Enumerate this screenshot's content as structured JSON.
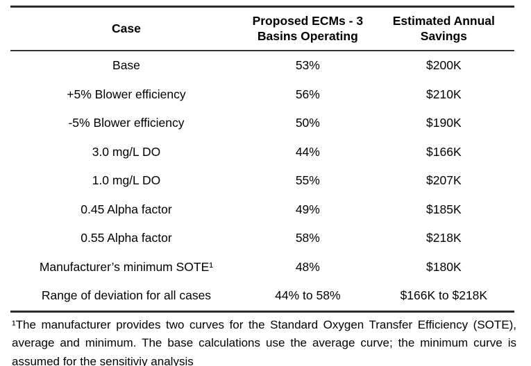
{
  "table": {
    "header": {
      "case": "Case",
      "ecm": "Proposed ECMs - 3\nBasins Operating",
      "savings": "Estimated Annual\nSavings"
    },
    "rows": [
      {
        "case": "Base",
        "ecm": "53%",
        "savings": "$200K"
      },
      {
        "case": "+5% Blower efficiency",
        "ecm": "56%",
        "savings": "$210K"
      },
      {
        "case": "-5% Blower efficiency",
        "ecm": "50%",
        "savings": "$190K"
      },
      {
        "case": "3.0 mg/L DO",
        "ecm": "44%",
        "savings": "$166K"
      },
      {
        "case": "1.0 mg/L DO",
        "ecm": "55%",
        "savings": "$207K"
      },
      {
        "case": "0.45 Alpha factor",
        "ecm": "49%",
        "savings": "$185K"
      },
      {
        "case": "0.55 Alpha factor",
        "ecm": "58%",
        "savings": "$218K"
      },
      {
        "case": "Manufacturer’s minimum SOTE¹",
        "ecm": "48%",
        "savings": "$180K"
      },
      {
        "case": "Range of deviation for all cases",
        "ecm": "44% to 58%",
        "savings": "$166K to $218K"
      }
    ],
    "footnote": "¹The manufacturer provides two curves for the Standard Oxygen Transfer Efficiency (SOTE), average and minimum. The base calculations use the average curve; the minimum curve is assumed for the sensitiviy analysis"
  },
  "colors": {
    "background": "#ffffff",
    "text": "#000000",
    "rule": "#282828"
  }
}
